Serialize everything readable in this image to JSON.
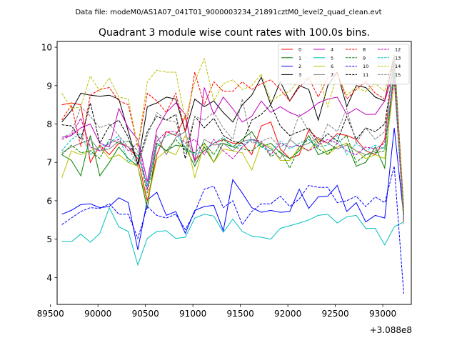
{
  "figure": {
    "suptitle": "Data file: modeM0/AS1A07_041T01_9000003234_21891cztM0_level2_quad_clean.evt"
  },
  "chart_data": {
    "type": "line",
    "title": "Quadrant 3 module wise count rates with 100.0s bins.",
    "xlabel": "",
    "ylabel": "",
    "x_offset_label": "+3.088e8",
    "xlim": [
      89570,
      93300
    ],
    "ylim": [
      3.3,
      10.15
    ],
    "grid": false,
    "legend_position": "top-right",
    "xticks": [
      89500,
      90000,
      90500,
      91000,
      91500,
      92000,
      92500,
      93000
    ],
    "xtick_labels": [
      "89500",
      "90000",
      "90500",
      "91000",
      "91500",
      "92000",
      "92500",
      "93000"
    ],
    "yticks": [
      4,
      5,
      6,
      7,
      8,
      9,
      10
    ],
    "ytick_labels": [
      "4",
      "5",
      "6",
      "7",
      "8",
      "9",
      "10"
    ],
    "x": [
      89620,
      89720,
      89820,
      89920,
      90020,
      90120,
      90220,
      90320,
      90420,
      90520,
      90620,
      90720,
      90820,
      90920,
      91020,
      91120,
      91220,
      91320,
      91420,
      91520,
      91620,
      91720,
      91820,
      91920,
      92020,
      92120,
      92220,
      92320,
      92420,
      92520,
      92620,
      92720,
      92820,
      92920,
      93020,
      93120,
      93220
    ],
    "series": [
      {
        "name": "0",
        "color": "#ff0000",
        "dash": "solid",
        "values": [
          8.5,
          8.55,
          8.5,
          7.0,
          7.45,
          7.2,
          7.5,
          7.4,
          7.1,
          6.0,
          7.2,
          7.8,
          7.7,
          8.2,
          7.05,
          7.3,
          7.5,
          7.6,
          7.5,
          7.5,
          7.2,
          7.95,
          8.05,
          7.35,
          7.1,
          7.2,
          7.85,
          7.6,
          7.5,
          7.75,
          7.7,
          7.6,
          7.3,
          7.2,
          7.6,
          9.8,
          5.8
        ]
      },
      {
        "name": "1",
        "color": "#008000",
        "dash": "solid",
        "values": [
          7.2,
          7.05,
          6.65,
          7.7,
          6.65,
          7.0,
          7.4,
          7.1,
          6.9,
          5.8,
          7.5,
          7.3,
          7.45,
          7.4,
          6.9,
          7.4,
          7.0,
          7.5,
          7.4,
          7.6,
          7.8,
          7.4,
          7.5,
          7.25,
          7.1,
          7.3,
          7.7,
          7.2,
          7.3,
          7.4,
          7.5,
          6.9,
          7.0,
          7.4,
          6.85,
          9.5,
          5.7
        ]
      },
      {
        "name": "2",
        "color": "#0000ff",
        "dash": "solid",
        "values": [
          5.65,
          5.75,
          5.9,
          5.92,
          5.82,
          5.85,
          6.08,
          5.95,
          4.72,
          6.02,
          6.22,
          5.62,
          5.72,
          5.15,
          5.75,
          5.85,
          5.88,
          5.22,
          6.55,
          6.2,
          5.82,
          5.7,
          5.75,
          5.7,
          5.72,
          6.3,
          5.8,
          6.1,
          6.12,
          6.4,
          5.72,
          5.95,
          5.45,
          5.62,
          5.55,
          7.9,
          5.6
        ]
      },
      {
        "name": "3",
        "color": "#000000",
        "dash": "solid",
        "values": [
          8.05,
          8.35,
          8.8,
          8.75,
          8.72,
          8.75,
          8.65,
          7.8,
          6.95,
          8.45,
          8.55,
          8.7,
          8.65,
          7.8,
          8.65,
          8.45,
          8.6,
          8.3,
          8.05,
          8.5,
          8.75,
          9.22,
          8.5,
          9.1,
          8.6,
          9.0,
          8.9,
          8.1,
          9.0,
          9.35,
          8.45,
          9.0,
          8.95,
          8.7,
          8.6,
          9.8,
          5.6
        ]
      },
      {
        "name": "4",
        "color": "#bf00bf",
        "dash": "solid",
        "values": [
          7.65,
          7.7,
          7.9,
          8.0,
          7.5,
          7.4,
          8.4,
          7.9,
          7.6,
          6.5,
          7.85,
          8.3,
          8.55,
          8.25,
          7.0,
          8.95,
          8.25,
          8.7,
          8.4,
          8.05,
          8.2,
          8.6,
          8.3,
          8.45,
          8.3,
          8.2,
          8.35,
          8.55,
          8.65,
          8.7,
          8.25,
          8.4,
          8.25,
          8.25,
          8.6,
          9.4,
          5.5
        ]
      },
      {
        "name": "5",
        "color": "#00bfbf",
        "dash": "solid",
        "values": [
          4.95,
          4.93,
          5.13,
          4.92,
          5.15,
          5.82,
          5.32,
          5.2,
          4.33,
          5.02,
          5.2,
          5.22,
          5.02,
          5.05,
          5.55,
          5.65,
          5.6,
          5.18,
          5.52,
          5.2,
          5.08,
          5.05,
          5.0,
          5.28,
          5.35,
          5.42,
          5.5,
          5.62,
          5.65,
          5.42,
          5.58,
          5.62,
          5.28,
          5.28,
          4.85,
          5.32,
          5.45
        ]
      },
      {
        "name": "6",
        "color": "#bfbf00",
        "dash": "solid",
        "values": [
          6.6,
          7.3,
          7.2,
          7.3,
          7.4,
          7.1,
          7.2,
          7.0,
          6.9,
          5.95,
          7.1,
          7.3,
          7.2,
          7.7,
          6.6,
          7.5,
          7.0,
          7.35,
          7.3,
          7.25,
          6.8,
          7.5,
          7.4,
          7.05,
          7.05,
          7.4,
          7.3,
          7.6,
          7.2,
          7.4,
          7.5,
          7.3,
          7.1,
          7.2,
          7.1,
          9.1,
          5.6
        ]
      },
      {
        "name": "7",
        "color": "#808080",
        "dash": "solid",
        "values": [
          7.25,
          7.4,
          7.5,
          7.6,
          7.3,
          7.35,
          7.55,
          7.4,
          7.2,
          6.4,
          7.7,
          7.2,
          7.65,
          7.8,
          7.0,
          7.6,
          7.45,
          7.5,
          7.3,
          7.55,
          7.6,
          7.5,
          7.35,
          7.1,
          7.6,
          7.4,
          7.5,
          7.65,
          7.5,
          7.35,
          7.45,
          7.3,
          7.2,
          7.3,
          7.4,
          9.3,
          5.6
        ]
      },
      {
        "name": "8",
        "color": "#ff0000",
        "dash": "dashed",
        "values": [
          8.1,
          8.5,
          7.4,
          8.75,
          8.9,
          8.95,
          8.6,
          8.5,
          7.4,
          8.8,
          8.6,
          8.3,
          8.8,
          7.8,
          9.35,
          8.5,
          9.1,
          8.85,
          8.85,
          9.1,
          8.9,
          9.05,
          9.15,
          8.9,
          8.6,
          8.95,
          9.2,
          8.7,
          9.2,
          9.35,
          8.65,
          8.9,
          9.1,
          8.8,
          8.65,
          9.65,
          5.4
        ]
      },
      {
        "name": "9",
        "color": "#008000",
        "dash": "dashed",
        "values": [
          7.2,
          7.45,
          7.25,
          7.3,
          7.1,
          7.6,
          7.5,
          7.55,
          7.3,
          6.2,
          7.5,
          7.3,
          7.6,
          7.3,
          7.25,
          7.5,
          7.2,
          7.6,
          7.4,
          7.35,
          7.3,
          7.5,
          7.15,
          7.3,
          6.85,
          7.4,
          7.6,
          7.35,
          7.2,
          7.5,
          7.7,
          7.0,
          7.2,
          7.25,
          7.3,
          9.35,
          5.7
        ]
      },
      {
        "name": "10",
        "color": "#0000ff",
        "dash": "dashed",
        "values": [
          5.38,
          5.55,
          5.72,
          5.82,
          5.8,
          5.92,
          5.65,
          5.65,
          5.02,
          5.85,
          5.62,
          5.55,
          5.65,
          5.25,
          5.7,
          6.3,
          6.38,
          5.82,
          6.0,
          5.38,
          5.72,
          5.92,
          5.92,
          6.12,
          5.85,
          6.05,
          6.4,
          6.35,
          6.35,
          5.95,
          6.0,
          6.12,
          5.85,
          6.1,
          5.95,
          6.9,
          3.58
        ]
      },
      {
        "name": "11",
        "color": "#000000",
        "dash": "dashed",
        "values": [
          7.98,
          7.95,
          7.6,
          8.55,
          7.5,
          7.95,
          8.1,
          7.65,
          6.95,
          7.8,
          8.2,
          8.1,
          8.25,
          7.1,
          8.2,
          7.9,
          8.15,
          7.7,
          7.55,
          7.5,
          8.1,
          8.25,
          8.5,
          7.95,
          7.7,
          7.8,
          7.9,
          7.5,
          7.75,
          7.55,
          8.2,
          7.6,
          7.9,
          7.8,
          8.0,
          9.6,
          5.5
        ]
      },
      {
        "name": "12",
        "color": "#bf00bf",
        "dash": "dashed",
        "values": [
          7.6,
          7.7,
          8.15,
          7.4,
          7.3,
          7.5,
          7.6,
          7.3,
          7.5,
          6.3,
          7.55,
          7.8,
          7.8,
          7.5,
          7.6,
          7.2,
          7.6,
          7.3,
          7.1,
          7.4,
          7.6,
          7.55,
          7.2,
          7.5,
          7.4,
          7.45,
          7.3,
          7.45,
          7.6,
          7.5,
          7.3,
          7.2,
          7.4,
          7.35,
          7.5,
          9.2,
          5.5
        ]
      },
      {
        "name": "13",
        "color": "#00bfbf",
        "dash": "dashed",
        "values": [
          7.3,
          7.6,
          7.75,
          7.2,
          7.4,
          7.5,
          7.7,
          7.0,
          7.2,
          6.4,
          7.4,
          7.7,
          7.75,
          7.4,
          7.2,
          7.3,
          7.5,
          7.65,
          7.4,
          7.45,
          7.6,
          7.4,
          7.3,
          7.55,
          7.35,
          7.5,
          7.6,
          7.4,
          7.45,
          7.7,
          7.2,
          7.5,
          7.3,
          7.45,
          7.35,
          9.5,
          5.5
        ]
      },
      {
        "name": "14",
        "color": "#bfbf00",
        "dash": "dashed",
        "values": [
          8.8,
          8.4,
          8.45,
          9.25,
          8.85,
          9.2,
          8.7,
          8.65,
          7.4,
          9.1,
          9.4,
          9.35,
          9.35,
          8.1,
          9.1,
          9.7,
          8.6,
          9.05,
          9.15,
          8.9,
          9.0,
          9.3,
          8.6,
          8.75,
          8.85,
          9.15,
          9.2,
          9.3,
          8.45,
          9.3,
          8.75,
          8.95,
          8.85,
          9.05,
          8.85,
          9.8,
          5.7
        ]
      },
      {
        "name": "15",
        "color": "#808080",
        "dash": "dashed",
        "values": [
          7.65,
          7.75,
          8.45,
          8.2,
          7.9,
          8.0,
          7.7,
          7.4,
          6.9,
          7.7,
          8.3,
          8.1,
          8.05,
          7.3,
          8.2,
          8.1,
          8.3,
          7.9,
          7.6,
          8.65,
          7.5,
          7.55,
          7.65,
          7.4,
          7.55,
          8.25,
          7.8,
          7.4,
          8.0,
          7.8,
          8.4,
          7.5,
          7.9,
          7.6,
          7.8,
          9.7,
          5.5
        ]
      }
    ]
  }
}
